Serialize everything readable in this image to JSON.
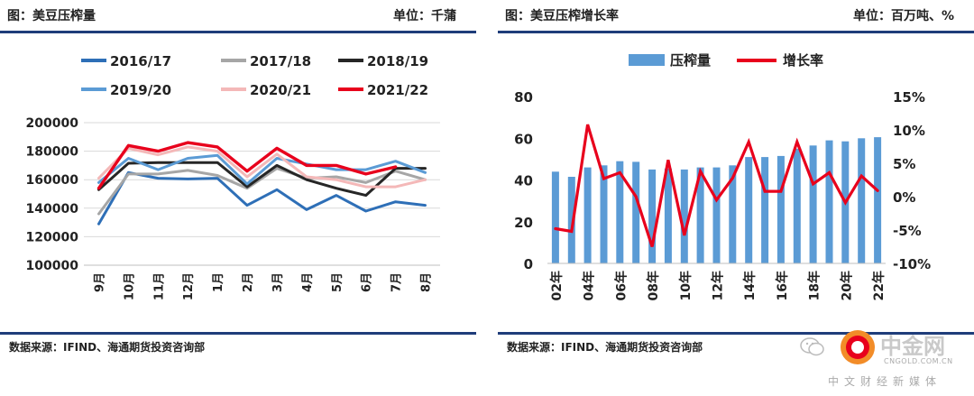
{
  "left": {
    "title": "图：美豆压榨量",
    "unit": "单位：千蒲",
    "source": "数据来源：IFIND、海通期货投资咨询部"
  },
  "right": {
    "title": "图：美豆压榨增长率",
    "unit": "单位：百万吨、%",
    "source": "数据来源：IFIND、海通期货投资咨询部"
  },
  "watermark": {
    "name": "中金网",
    "domain": "CNGOLD.COM.CN",
    "slogan": "中文财经新媒体"
  },
  "chart_data": [
    {
      "type": "line",
      "title": "",
      "categories": [
        "9月",
        "10月",
        "11月",
        "12月",
        "1月",
        "2月",
        "3月",
        "4月",
        "5月",
        "6月",
        "7月",
        "8月"
      ],
      "ylim": [
        100000,
        200000
      ],
      "yticks": [
        100000,
        120000,
        140000,
        160000,
        180000,
        200000
      ],
      "grid": true,
      "legend_position": "top",
      "series": [
        {
          "name": "2016/17",
          "color": "#2e6fb7",
          "values": [
            129000,
            165000,
            161000,
            160500,
            161000,
            142000,
            153000,
            139000,
            149000,
            138000,
            144500,
            142000
          ]
        },
        {
          "name": "2017/18",
          "color": "#a6a6a6",
          "values": [
            136000,
            164000,
            164000,
            166500,
            163000,
            154000,
            168000,
            161000,
            162000,
            158000,
            166000,
            160000
          ]
        },
        {
          "name": "2018/19",
          "color": "#262626",
          "values": [
            153000,
            171500,
            172000,
            172000,
            172000,
            155000,
            170000,
            160000,
            154000,
            149000,
            168000,
            168000
          ]
        },
        {
          "name": "2019/20",
          "color": "#5b9bd5",
          "values": [
            158000,
            175000,
            167000,
            175000,
            177000,
            157000,
            175000,
            171000,
            167000,
            167000,
            173000,
            165000
          ]
        },
        {
          "name": "2020/21",
          "color": "#f4b8b8",
          "values": [
            161000,
            182000,
            177500,
            183000,
            180000,
            162000,
            178000,
            162000,
            160000,
            155000,
            155000,
            160000
          ]
        },
        {
          "name": "2021/22",
          "color": "#e8001c",
          "values": [
            154000,
            184000,
            180000,
            186000,
            183000,
            166000,
            182000,
            170000,
            170000,
            164000,
            169000,
            null
          ]
        }
      ]
    },
    {
      "type": "bar",
      "title": "",
      "categories": [
        "02年",
        "03年",
        "04年",
        "05年",
        "06年",
        "07年",
        "08年",
        "09年",
        "10年",
        "11年",
        "12年",
        "13年",
        "14年",
        "15年",
        "16年",
        "17年",
        "18年",
        "19年",
        "20年",
        "21年",
        "22年"
      ],
      "x_tick_labels_shown": [
        "02年",
        "04年",
        "06年",
        "08年",
        "10年",
        "12年",
        "14年",
        "16年",
        "18年",
        "20年",
        "22年"
      ],
      "ylim": [
        0,
        80
      ],
      "yticks": [
        0,
        20,
        40,
        60,
        80
      ],
      "y2lim": [
        -10,
        15
      ],
      "y2ticks": [
        "-10%",
        "-5%",
        "0%",
        "5%",
        "10%",
        "15%"
      ],
      "grid": false,
      "legend_position": "top",
      "series": [
        {
          "name": "压榨量",
          "type": "bar",
          "axis": "left",
          "color": "#5b9bd5",
          "values": [
            44,
            41.5,
            46,
            47,
            49,
            48.7,
            45,
            45.5,
            45,
            46,
            46,
            47,
            51,
            51,
            51.5,
            55,
            56.5,
            59,
            58.5,
            60,
            60.5
          ]
        },
        {
          "name": "增长率",
          "type": "line",
          "axis": "right",
          "color": "#e8001c",
          "values": [
            -4.8,
            -5.2,
            10.8,
            2.7,
            3.6,
            0.0,
            -7.5,
            5.5,
            -5.8,
            3.8,
            -0.5,
            2.8,
            8.2,
            0.8,
            0.8,
            8.2,
            1.9,
            3.6,
            -0.9,
            3.1,
            0.9
          ]
        }
      ]
    }
  ]
}
